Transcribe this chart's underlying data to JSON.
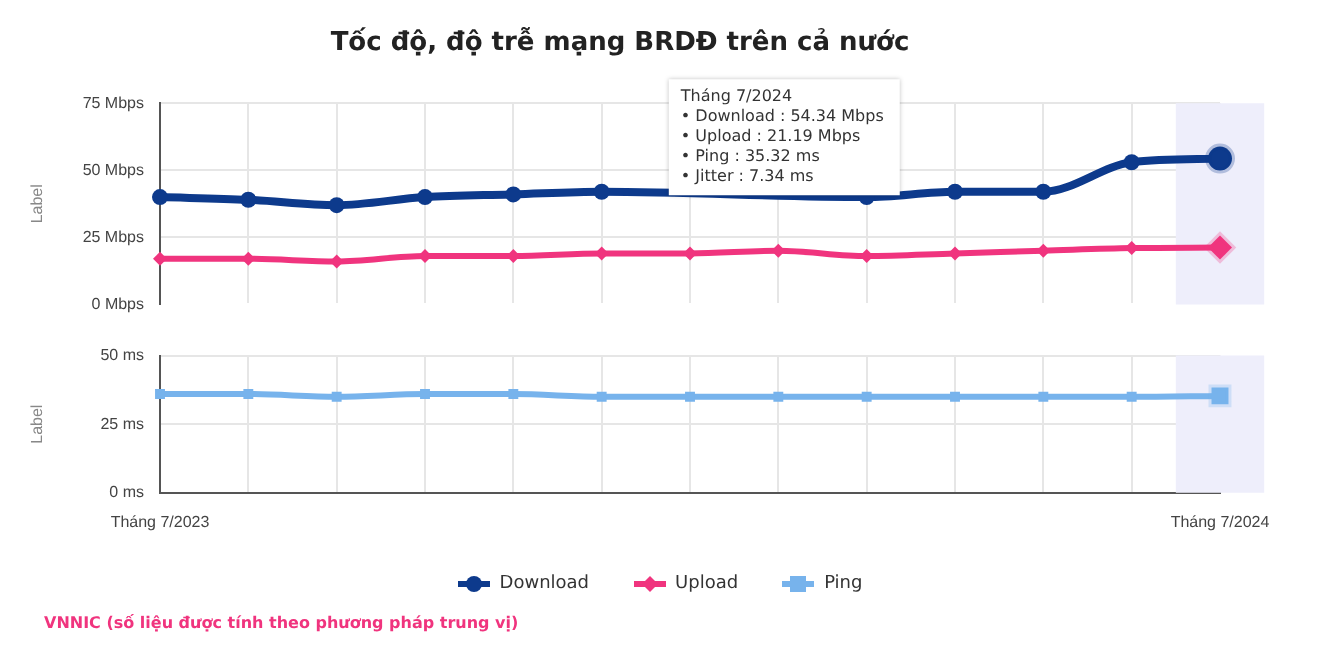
{
  "chart_data": [
    {
      "type": "line",
      "title": "Tốc độ, độ trễ mạng BRDĐ trên cả nước",
      "categories": [
        "Tháng 7/2023",
        null,
        null,
        null,
        null,
        null,
        null,
        null,
        null,
        null,
        null,
        null,
        "Tháng 7/2024"
      ],
      "series": [
        {
          "name": "Download",
          "color": "#0d3a8c",
          "marker": "circle",
          "values": [
            40,
            39,
            37,
            40,
            41,
            42,
            null,
            null,
            40,
            42,
            42,
            53,
            54.34
          ]
        },
        {
          "name": "Upload",
          "color": "#f0347e",
          "marker": "diamond",
          "values": [
            17,
            17,
            16,
            18,
            18,
            19,
            19,
            20,
            18,
            19,
            20,
            21,
            21.19
          ]
        }
      ],
      "ylabel": "Label",
      "ylim": [
        0,
        75
      ],
      "yticks": [
        {
          "value": 0,
          "label": "0 Mbps"
        },
        {
          "value": 25,
          "label": "25 Mbps"
        },
        {
          "value": 50,
          "label": "50 Mbps"
        },
        {
          "value": 75,
          "label": "75 Mbps"
        }
      ],
      "tick_labels": "y",
      "grid": true,
      "legend": "bottom",
      "line_style": "solid",
      "bands": [
        {
          "axis": "x",
          "from": "Tháng 7/2024",
          "to": "Tháng 7/2024",
          "color": "#eeeefb"
        }
      ],
      "annotations": [
        "Tháng 7/2024\n• Download : 54.34 Mbps\n• Upload : 21.19 Mbps\n• Ping : 35.32 ms\n• Jitter : 7.34 ms"
      ]
    },
    {
      "type": "line",
      "categories": [
        "Tháng 7/2023",
        null,
        null,
        null,
        null,
        null,
        null,
        null,
        null,
        null,
        null,
        null,
        "Tháng 7/2024"
      ],
      "series": [
        {
          "name": "Ping",
          "color": "#77b3ec",
          "marker": "square",
          "values": [
            36,
            36,
            35,
            36,
            36,
            35,
            35,
            35,
            35,
            35,
            35,
            35,
            35.32
          ]
        }
      ],
      "ylabel": "Label",
      "ylim": [
        0,
        50
      ],
      "yticks": [
        {
          "value": 0,
          "label": "0 ms"
        },
        {
          "value": 25,
          "label": "25 ms"
        },
        {
          "value": 50,
          "label": "50 ms"
        }
      ],
      "grid": true,
      "legend": "bottom",
      "line_style": "solid",
      "bands": [
        {
          "axis": "x",
          "from": "Tháng 7/2024",
          "to": "Tháng 7/2024",
          "color": "#eeeefb"
        }
      ],
      "annotations": [
        "VNNIC (số liệu được tính theo phương pháp trung vị)"
      ]
    }
  ]
}
